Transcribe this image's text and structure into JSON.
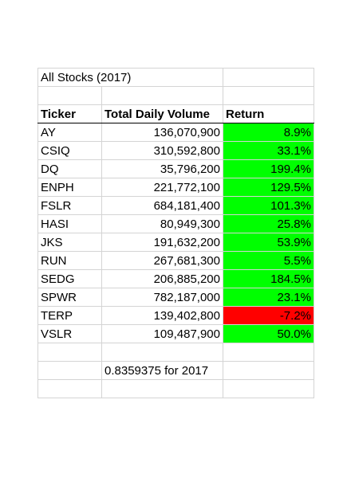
{
  "title": "All Stocks (2017)",
  "headers": [
    "Ticker",
    "Total Daily Volume",
    "Return"
  ],
  "rows": [
    {
      "ticker": "AY",
      "volume": "136,070,900",
      "ret": "8.9%",
      "status": "positive"
    },
    {
      "ticker": "CSIQ",
      "volume": "310,592,800",
      "ret": "33.1%",
      "status": "positive"
    },
    {
      "ticker": "DQ",
      "volume": "35,796,200",
      "ret": "199.4%",
      "status": "positive"
    },
    {
      "ticker": "ENPH",
      "volume": "221,772,100",
      "ret": "129.5%",
      "status": "positive"
    },
    {
      "ticker": "FSLR",
      "volume": "684,181,400",
      "ret": "101.3%",
      "status": "positive"
    },
    {
      "ticker": "HASI",
      "volume": "80,949,300",
      "ret": "25.8%",
      "status": "positive"
    },
    {
      "ticker": "JKS",
      "volume": "191,632,200",
      "ret": "53.9%",
      "status": "positive"
    },
    {
      "ticker": "RUN",
      "volume": "267,681,300",
      "ret": "5.5%",
      "status": "positive"
    },
    {
      "ticker": "SEDG",
      "volume": "206,885,200",
      "ret": "184.5%",
      "status": "positive"
    },
    {
      "ticker": "SPWR",
      "volume": "782,187,000",
      "ret": "23.1%",
      "status": "positive"
    },
    {
      "ticker": "TERP",
      "volume": "139,402,800",
      "ret": "-7.2%",
      "status": "negative"
    },
    {
      "ticker": "VSLR",
      "volume": "109,487,900",
      "ret": "50.0%",
      "status": "positive"
    }
  ],
  "runtime_text": "0.8359375 for 2017",
  "colors": {
    "positive": "#00ff00",
    "negative": "#ff0000",
    "gridline": "#d4d4d4"
  }
}
